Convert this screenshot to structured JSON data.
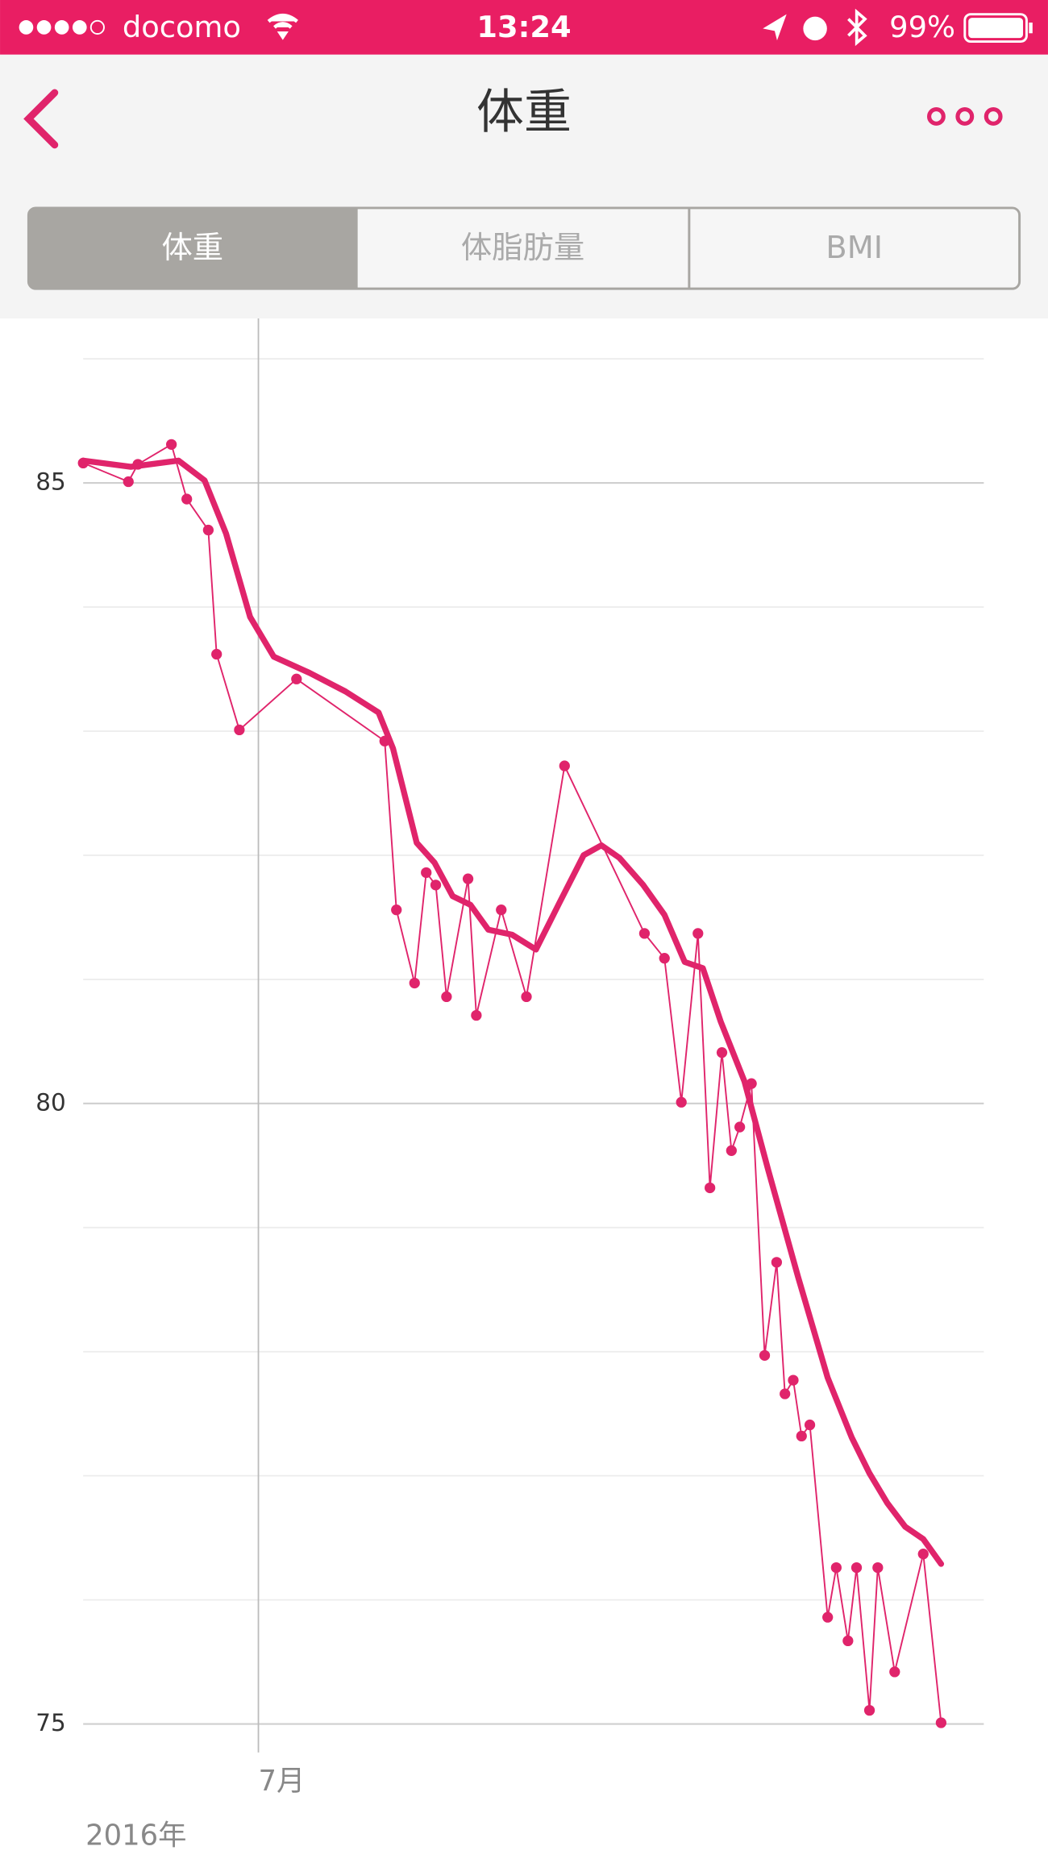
{
  "status_bar": {
    "carrier": "docomo",
    "time": "13:24",
    "battery": "99%"
  },
  "nav": {
    "title": "体重"
  },
  "tabs": [
    "体重",
    "体脂肪量",
    "BMI"
  ],
  "chart_data": {
    "type": "line",
    "x_sublabel": "2016年",
    "xlim": [
      6.43,
      9.36
    ],
    "xticks": [
      {
        "value": 7,
        "label": "7月"
      }
    ],
    "ylim": [
      75,
      86
    ],
    "yticks": [
      75,
      80,
      85
    ],
    "minor_yticks": [
      76,
      77,
      78,
      79,
      81,
      82,
      83,
      84,
      86
    ],
    "grid": true,
    "series": [
      {
        "color": "#e0246b",
        "markers": true,
        "line_width": 1.3,
        "x": [
          6.43,
          6.577,
          6.608,
          6.717,
          6.767,
          6.837,
          6.864,
          6.938,
          7.124,
          7.411,
          7.449,
          7.508,
          7.546,
          7.577,
          7.612,
          7.682,
          7.709,
          7.79,
          7.872,
          7.996,
          8.256,
          8.321,
          8.376,
          8.43,
          8.469,
          8.508,
          8.539,
          8.566,
          8.604,
          8.647,
          8.686,
          8.713,
          8.74,
          8.767,
          8.794,
          8.852,
          8.88,
          8.918,
          8.946,
          8.988,
          9.015,
          9.07,
          9.163,
          9.221
        ],
        "values": [
          85.16,
          85.01,
          85.15,
          85.31,
          84.87,
          84.62,
          83.62,
          83.01,
          83.42,
          82.92,
          81.56,
          80.97,
          81.86,
          81.76,
          80.86,
          81.81,
          80.71,
          81.56,
          80.86,
          82.72,
          81.37,
          81.17,
          80.01,
          81.37,
          79.32,
          80.41,
          79.62,
          79.81,
          80.16,
          77.97,
          78.72,
          77.66,
          77.77,
          77.32,
          77.41,
          75.86,
          76.26,
          75.67,
          76.26,
          75.11,
          76.26,
          75.42,
          76.37,
          75.01
        ]
      },
      {
        "color": "#e0246b",
        "markers": false,
        "line_width": 5,
        "x": [
          6.43,
          6.585,
          6.74,
          6.825,
          6.895,
          6.973,
          7.05,
          7.166,
          7.283,
          7.391,
          7.438,
          7.515,
          7.573,
          7.632,
          7.69,
          7.748,
          7.825,
          7.903,
          7.98,
          8.058,
          8.116,
          8.174,
          8.252,
          8.321,
          8.387,
          8.446,
          8.504,
          8.581,
          8.659,
          8.756,
          8.852,
          8.93,
          8.988,
          9.046,
          9.104,
          9.163,
          9.221
        ],
        "values": [
          85.18,
          85.13,
          85.18,
          85.02,
          84.59,
          83.92,
          83.6,
          83.47,
          83.32,
          83.15,
          82.86,
          82.1,
          81.94,
          81.67,
          81.6,
          81.4,
          81.36,
          81.24,
          81.62,
          82.0,
          82.08,
          81.98,
          81.76,
          81.52,
          81.14,
          81.09,
          80.66,
          80.18,
          79.46,
          78.6,
          77.79,
          77.31,
          77.02,
          76.78,
          76.59,
          76.49,
          76.29
        ]
      }
    ]
  }
}
